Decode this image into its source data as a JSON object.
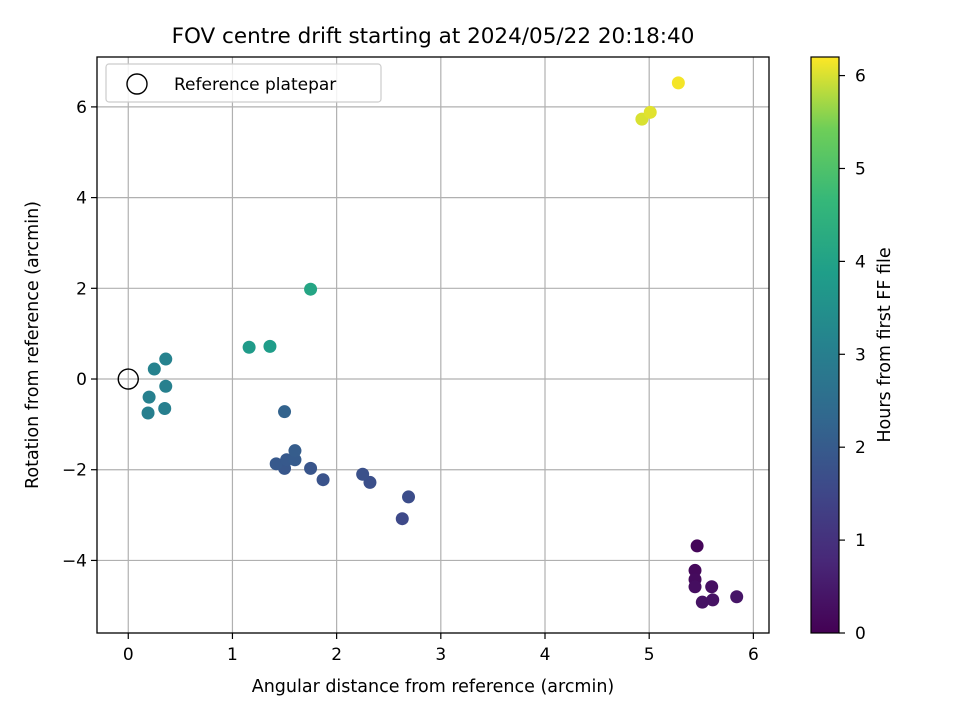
{
  "chart_data": {
    "type": "scatter",
    "title": "FOV centre drift starting at 2024/05/22 20:18:40",
    "xlabel": "Angular distance from reference (arcmin)",
    "ylabel": "Rotation from reference (arcmin)",
    "xlim": [
      -0.3,
      6.15
    ],
    "ylim": [
      -5.6,
      7.1
    ],
    "xticks": [
      0,
      1,
      2,
      3,
      4,
      5,
      6
    ],
    "yticks": [
      -4,
      -2,
      0,
      2,
      4,
      6
    ],
    "grid": true,
    "legend": {
      "position": "top-left",
      "entries": [
        "Reference platepar"
      ]
    },
    "reference_point": {
      "label": "Reference platepar",
      "x": 0,
      "y": 0,
      "marker": "open-circle"
    },
    "colorbar": {
      "label": "Hours from first FF file",
      "colormap": "viridis",
      "range": [
        0,
        6.2
      ],
      "ticks": [
        0,
        1,
        2,
        3,
        4,
        5,
        6
      ]
    },
    "points": [
      {
        "x": 5.46,
        "y": -3.68,
        "c": 0.1
      },
      {
        "x": 5.44,
        "y": -4.22,
        "c": 0.15
      },
      {
        "x": 5.44,
        "y": -4.42,
        "c": 0.2
      },
      {
        "x": 5.44,
        "y": -4.58,
        "c": 0.25
      },
      {
        "x": 5.6,
        "y": -4.58,
        "c": 0.3
      },
      {
        "x": 5.51,
        "y": -4.92,
        "c": 0.35
      },
      {
        "x": 5.61,
        "y": -4.87,
        "c": 0.35
      },
      {
        "x": 5.84,
        "y": -4.8,
        "c": 0.4
      },
      {
        "x": 2.63,
        "y": -3.08,
        "c": 1.55
      },
      {
        "x": 2.69,
        "y": -2.6,
        "c": 1.65
      },
      {
        "x": 2.32,
        "y": -2.28,
        "c": 1.7
      },
      {
        "x": 2.25,
        "y": -2.1,
        "c": 1.75
      },
      {
        "x": 1.87,
        "y": -2.22,
        "c": 1.8
      },
      {
        "x": 1.75,
        "y": -1.97,
        "c": 1.85
      },
      {
        "x": 1.5,
        "y": -1.97,
        "c": 1.9
      },
      {
        "x": 1.42,
        "y": -1.87,
        "c": 1.95
      },
      {
        "x": 1.52,
        "y": -1.78,
        "c": 1.95
      },
      {
        "x": 1.6,
        "y": -1.78,
        "c": 2.0
      },
      {
        "x": 1.6,
        "y": -1.58,
        "c": 2.05
      },
      {
        "x": 1.5,
        "y": -0.72,
        "c": 2.2
      },
      {
        "x": 0.19,
        "y": -0.75,
        "c": 3.0
      },
      {
        "x": 0.35,
        "y": -0.65,
        "c": 3.0
      },
      {
        "x": 0.2,
        "y": -0.4,
        "c": 3.05
      },
      {
        "x": 0.36,
        "y": -0.16,
        "c": 3.05
      },
      {
        "x": 0.25,
        "y": 0.22,
        "c": 3.1
      },
      {
        "x": 0.36,
        "y": 0.44,
        "c": 3.1
      },
      {
        "x": 1.16,
        "y": 0.7,
        "c": 3.8
      },
      {
        "x": 1.36,
        "y": 0.72,
        "c": 3.85
      },
      {
        "x": 1.75,
        "y": 1.98,
        "c": 4.1
      },
      {
        "x": 4.93,
        "y": 5.73,
        "c": 6.0
      },
      {
        "x": 5.01,
        "y": 5.88,
        "c": 6.05
      },
      {
        "x": 5.28,
        "y": 6.53,
        "c": 6.15
      }
    ]
  }
}
